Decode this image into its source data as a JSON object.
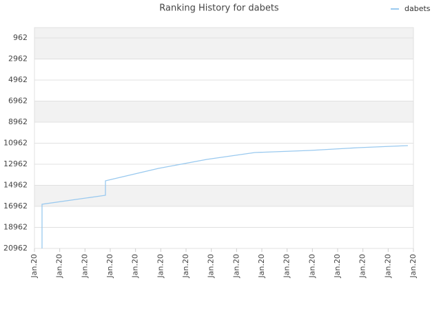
{
  "chart_data": {
    "type": "line",
    "title": "Ranking History for dabets",
    "x": [
      0.3,
      0.3,
      2.81,
      2.81,
      4.91,
      6.82,
      8.73,
      10.91,
      12.82,
      14.78
    ],
    "series": [
      {
        "name": "dabets",
        "color": "#99c9ef",
        "values": [
          20962,
          16765,
          15912,
          14535,
          13355,
          12502,
          11847,
          11650,
          11388,
          11191
        ]
      }
    ],
    "xlim": [
      0,
      15
    ],
    "xticks": [
      {
        "value": 0,
        "label": "Jan.20"
      },
      {
        "value": 1,
        "label": "Jan.20"
      },
      {
        "value": 2,
        "label": "Jan.20"
      },
      {
        "value": 3,
        "label": "Jan.20"
      },
      {
        "value": 4,
        "label": "Jan.20"
      },
      {
        "value": 5,
        "label": "Jan.20"
      },
      {
        "value": 6,
        "label": "Jan.20"
      },
      {
        "value": 7,
        "label": "Jan.20"
      },
      {
        "value": 8,
        "label": "Jan.20"
      },
      {
        "value": 9,
        "label": "Jan.20"
      },
      {
        "value": 10,
        "label": "Jan.20"
      },
      {
        "value": 11,
        "label": "Jan.20"
      },
      {
        "value": 12,
        "label": "Jan.20"
      },
      {
        "value": 13,
        "label": "Jan.20"
      },
      {
        "value": 14,
        "label": "Jan.20"
      },
      {
        "value": 15,
        "label": "Jan.20"
      }
    ],
    "ylim": [
      -22,
      20962
    ],
    "y_inverted": true,
    "yticks": [
      962,
      2962,
      4962,
      6962,
      8962,
      10962,
      12962,
      14962,
      16962,
      18962,
      20962
    ],
    "grid": true,
    "legend": "top-right"
  }
}
